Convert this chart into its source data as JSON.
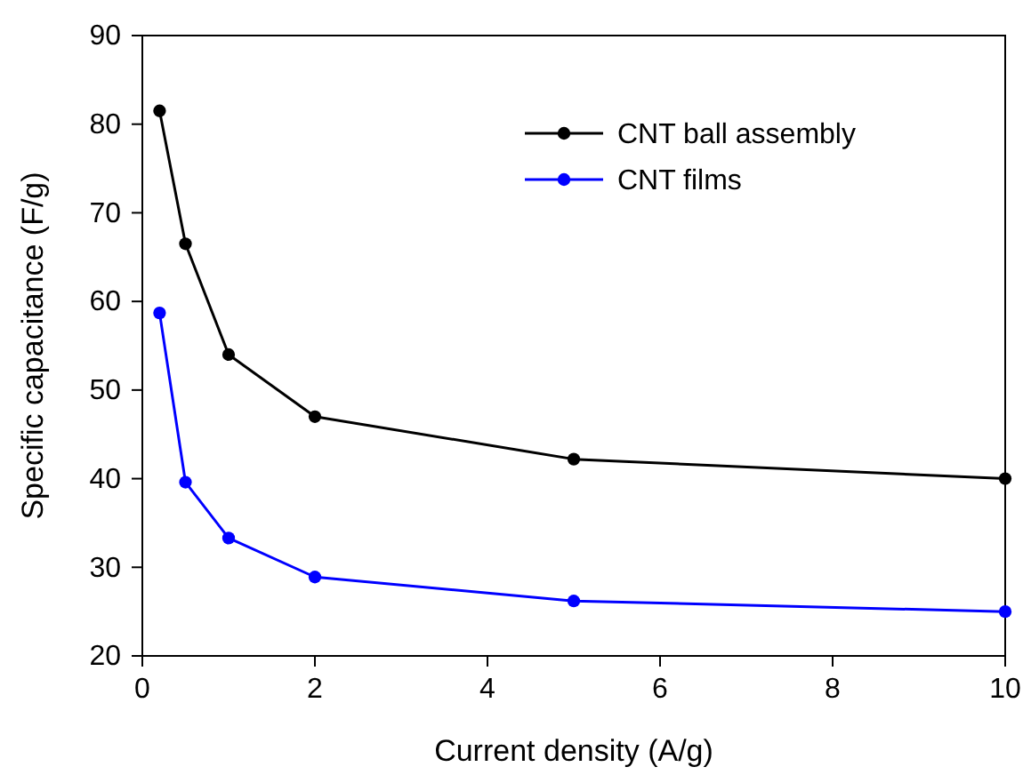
{
  "chart_data": {
    "type": "line",
    "xlabel": "Current density (A/g)",
    "ylabel": "Specific capacitance (F/g)",
    "x": [
      0.2,
      0.5,
      1,
      2,
      5,
      10
    ],
    "series": [
      {
        "name": "CNT ball assembly",
        "color": "#000000",
        "values": [
          81.5,
          66.5,
          54,
          47,
          42.2,
          40
        ]
      },
      {
        "name": "CNT films",
        "color": "#0000ff",
        "values": [
          58.7,
          39.6,
          33.3,
          28.9,
          26.2,
          25
        ]
      }
    ],
    "xlim": [
      0,
      10
    ],
    "xticks": [
      0,
      2,
      4,
      6,
      8,
      10
    ],
    "ylim": [
      20,
      90
    ],
    "yticks": [
      20,
      30,
      40,
      50,
      60,
      70,
      80,
      90
    ],
    "grid": false,
    "legend": "top right",
    "marker": "circle",
    "line_style": "solid"
  }
}
